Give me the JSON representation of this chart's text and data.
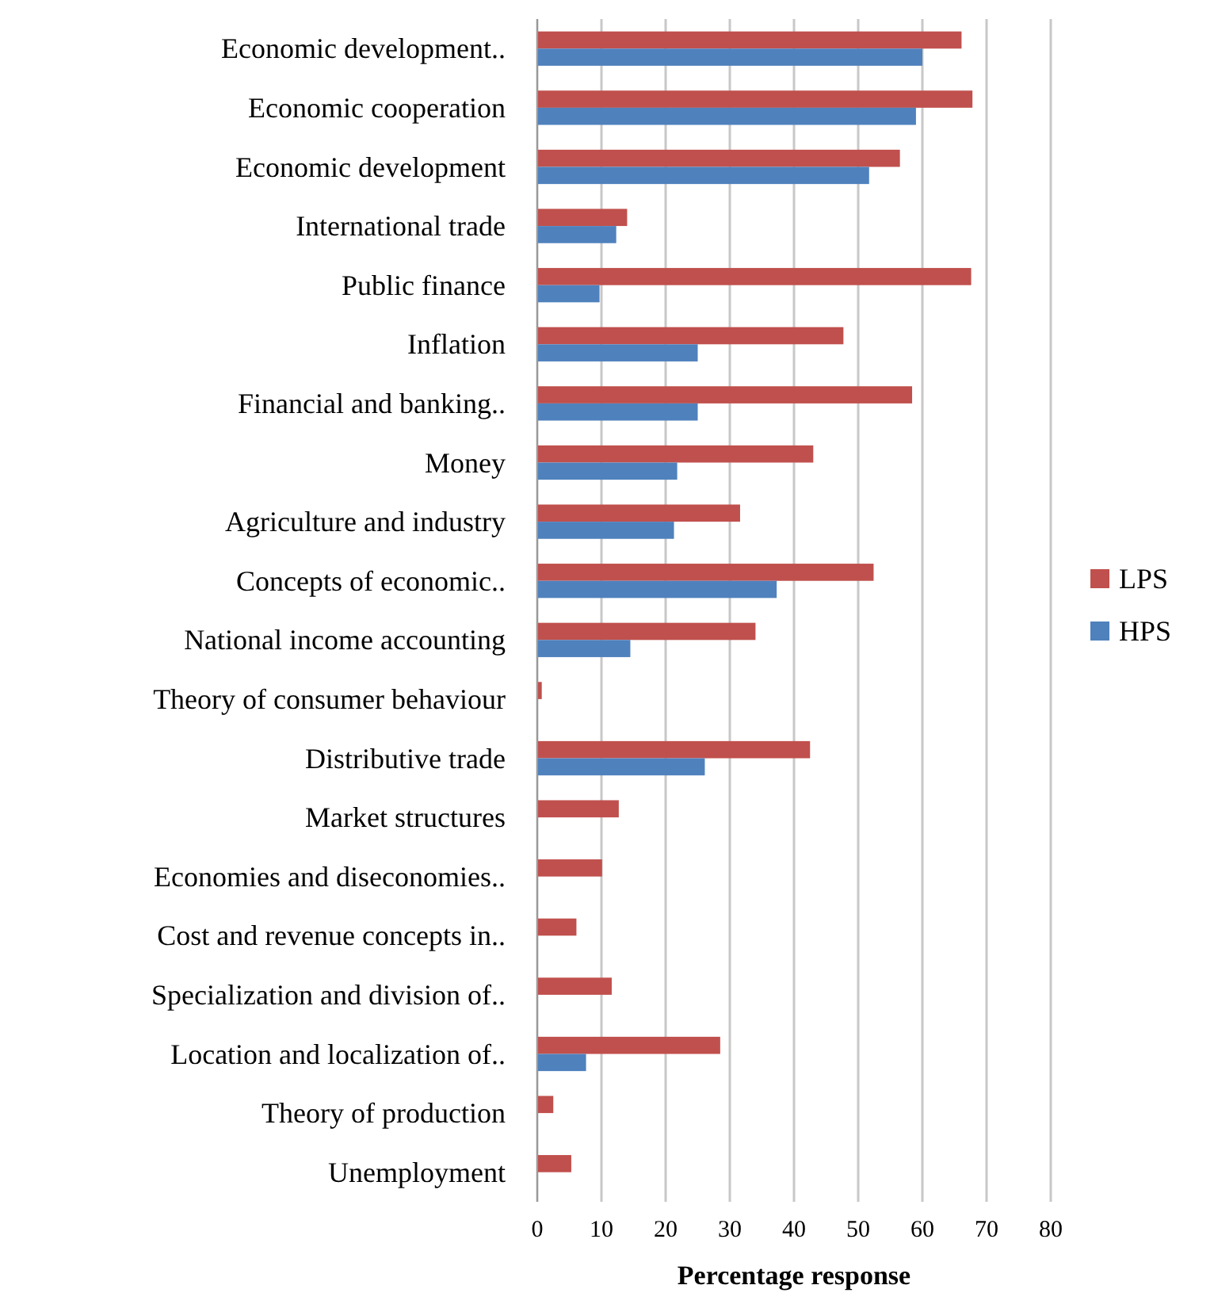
{
  "chart_data": {
    "type": "bar",
    "orientation": "horizontal",
    "xlabel": "Percentage response",
    "categories": [
      "Economic development..",
      "Economic cooperation",
      "Economic development",
      "International trade",
      "Public finance",
      "Inflation",
      "Financial and banking..",
      "Money",
      "Agriculture and industry",
      "Concepts of economic..",
      "National income accounting",
      "Theory of consumer behaviour",
      "Distributive trade",
      "Market structures",
      "Economies and diseconomies..",
      "Cost and revenue concepts in..",
      "Specialization and division of..",
      "Location and localization of..",
      "Theory of production",
      "Unemployment"
    ],
    "series": [
      {
        "name": "LPS",
        "color": "#c0504d",
        "values": [
          66.1,
          67.8,
          56.5,
          14,
          67.6,
          47.7,
          58.4,
          43,
          31.6,
          52.4,
          34,
          0.7,
          42.5,
          12.7,
          10.1,
          6.1,
          11.6,
          28.5,
          2.5,
          5.3
        ]
      },
      {
        "name": "HPS",
        "color": "#4f81bd",
        "values": [
          60,
          59,
          51.7,
          12.3,
          9.7,
          25,
          25,
          21.8,
          21.3,
          37.3,
          14.5,
          0,
          26.1,
          0,
          0,
          0,
          0,
          7.6,
          0,
          0
        ]
      }
    ],
    "xlim": [
      0,
      80
    ],
    "xticks": [
      0,
      10,
      20,
      30,
      40,
      50,
      60,
      70,
      80
    ],
    "grid": "x",
    "legend": "right"
  }
}
